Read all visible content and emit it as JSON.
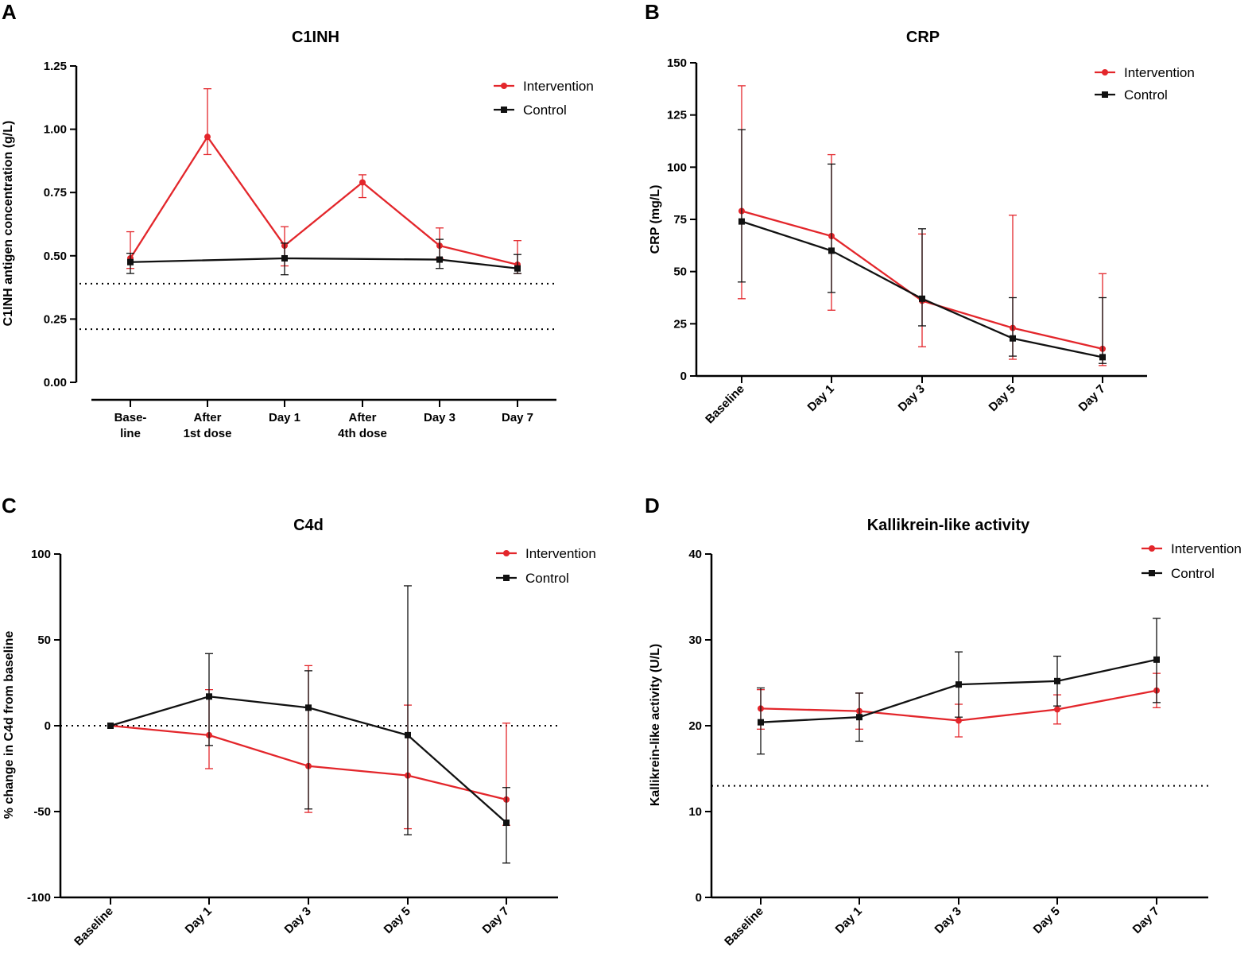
{
  "chart_data": [
    {
      "panel": "A",
      "type": "line",
      "title": "C1INH",
      "ylabel": "C1INH antigen concentration  (g/L)",
      "xlabel": "",
      "categories": [
        [
          "Base-",
          "line"
        ],
        [
          "After",
          "1st dose"
        ],
        [
          "Day 1"
        ],
        [
          "After",
          "4th dose"
        ],
        [
          "Day 3"
        ],
        [
          "Day 7"
        ]
      ],
      "ylim": [
        0,
        1.25
      ],
      "yticks": [
        "0.00",
        "0.25",
        "0.50",
        "0.75",
        "1.00",
        "1.25"
      ],
      "reference_lines": [
        0.39,
        0.21
      ],
      "series": [
        {
          "name": "Intervention",
          "color": "#e3262b",
          "marker": "circle",
          "x": [
            0,
            1,
            2,
            3,
            4,
            5
          ],
          "values": [
            0.49,
            0.97,
            0.54,
            0.79,
            0.54,
            0.465
          ],
          "err_low": [
            0.45,
            0.9,
            0.46,
            0.73,
            0.49,
            0.43
          ],
          "err_high": [
            0.595,
            1.16,
            0.615,
            0.82,
            0.61,
            0.56
          ]
        },
        {
          "name": "Control",
          "color": "#111111",
          "marker": "square",
          "x": [
            0,
            2,
            4,
            5
          ],
          "values": [
            0.475,
            0.49,
            0.485,
            0.45
          ],
          "err_low": [
            0.43,
            0.425,
            0.45,
            0.43
          ],
          "err_high": [
            0.51,
            0.55,
            0.565,
            0.505
          ]
        }
      ],
      "legend": "top-right"
    },
    {
      "panel": "B",
      "type": "line",
      "title": "CRP",
      "ylabel": "CRP (mg/L)",
      "xlabel": "",
      "categories": [
        [
          "Baseline"
        ],
        [
          "Day 1"
        ],
        [
          "Day 3"
        ],
        [
          "Day 5"
        ],
        [
          "Day 7"
        ]
      ],
      "ylim": [
        0,
        150
      ],
      "yticks": [
        "0",
        "25",
        "50",
        "75",
        "100",
        "125",
        "150"
      ],
      "reference_lines": [],
      "series": [
        {
          "name": "Intervention",
          "color": "#e3262b",
          "marker": "circle",
          "x": [
            0,
            1,
            2,
            3,
            4
          ],
          "values": [
            79,
            67,
            36,
            23,
            13
          ],
          "err_low": [
            37,
            31.5,
            14,
            8,
            5
          ],
          "err_high": [
            139,
            106,
            68,
            77,
            49
          ]
        },
        {
          "name": "Control",
          "color": "#111111",
          "marker": "square",
          "x": [
            0,
            1,
            2,
            3,
            4
          ],
          "values": [
            74,
            60,
            37,
            18,
            9
          ],
          "err_low": [
            45,
            40,
            24,
            9.5,
            6
          ],
          "err_high": [
            118,
            101.5,
            70.5,
            37.5,
            37.5
          ]
        }
      ],
      "legend": "top-right"
    },
    {
      "panel": "C",
      "type": "line",
      "title": "C4d",
      "ylabel": "% change in C4d from baseline",
      "xlabel": "",
      "categories": [
        [
          "Baseline"
        ],
        [
          "Day 1"
        ],
        [
          "Day 3"
        ],
        [
          "Day 5"
        ],
        [
          "Day 7"
        ]
      ],
      "ylim": [
        -100,
        100
      ],
      "yticks": [
        "-100",
        "-50",
        "0",
        "50",
        "100"
      ],
      "reference_lines": [
        0
      ],
      "series": [
        {
          "name": "Intervention",
          "color": "#e3262b",
          "marker": "circle",
          "x": [
            0,
            1,
            2,
            3,
            4
          ],
          "values": [
            0,
            -5.5,
            -23.5,
            -29,
            -43
          ],
          "err_low": [
            0,
            -25,
            -50.5,
            -60,
            -58
          ],
          "err_high": [
            0,
            21,
            35,
            12,
            1.5
          ]
        },
        {
          "name": "Control",
          "color": "#111111",
          "marker": "square",
          "x": [
            0,
            1,
            2,
            3,
            4
          ],
          "values": [
            0,
            17,
            10.5,
            -5.5,
            -56.5
          ],
          "err_low": [
            0,
            -11.5,
            -48.5,
            -63.5,
            -80
          ],
          "err_high": [
            0,
            42,
            32,
            81.5,
            -36
          ]
        }
      ],
      "legend": "top-right"
    },
    {
      "panel": "D",
      "type": "line",
      "title": "Kallikrein-like activity",
      "ylabel": "Kallikrein-like activity (U/L)",
      "xlabel": "",
      "categories": [
        [
          "Baseline"
        ],
        [
          "Day 1"
        ],
        [
          "Day 3"
        ],
        [
          "Day 5"
        ],
        [
          "Day 7"
        ]
      ],
      "ylim": [
        0,
        40
      ],
      "yticks": [
        "0",
        "10",
        "20",
        "30",
        "40"
      ],
      "reference_lines": [
        13
      ],
      "series": [
        {
          "name": "Intervention",
          "color": "#e3262b",
          "marker": "circle",
          "x": [
            0,
            1,
            2,
            3,
            4
          ],
          "values": [
            22,
            21.7,
            20.6,
            21.9,
            24.1
          ],
          "err_low": [
            19.6,
            19.6,
            18.7,
            20.2,
            22.1
          ],
          "err_high": [
            24.2,
            23.8,
            22.5,
            23.6,
            26.1
          ]
        },
        {
          "name": "Control",
          "color": "#111111",
          "marker": "square",
          "x": [
            0,
            1,
            2,
            3,
            4
          ],
          "values": [
            20.4,
            21,
            24.8,
            25.2,
            27.7
          ],
          "err_low": [
            16.7,
            18.2,
            21,
            22.3,
            22.7
          ],
          "err_high": [
            24.4,
            23.8,
            28.6,
            28.1,
            32.5
          ]
        }
      ],
      "legend": "top-right"
    }
  ]
}
